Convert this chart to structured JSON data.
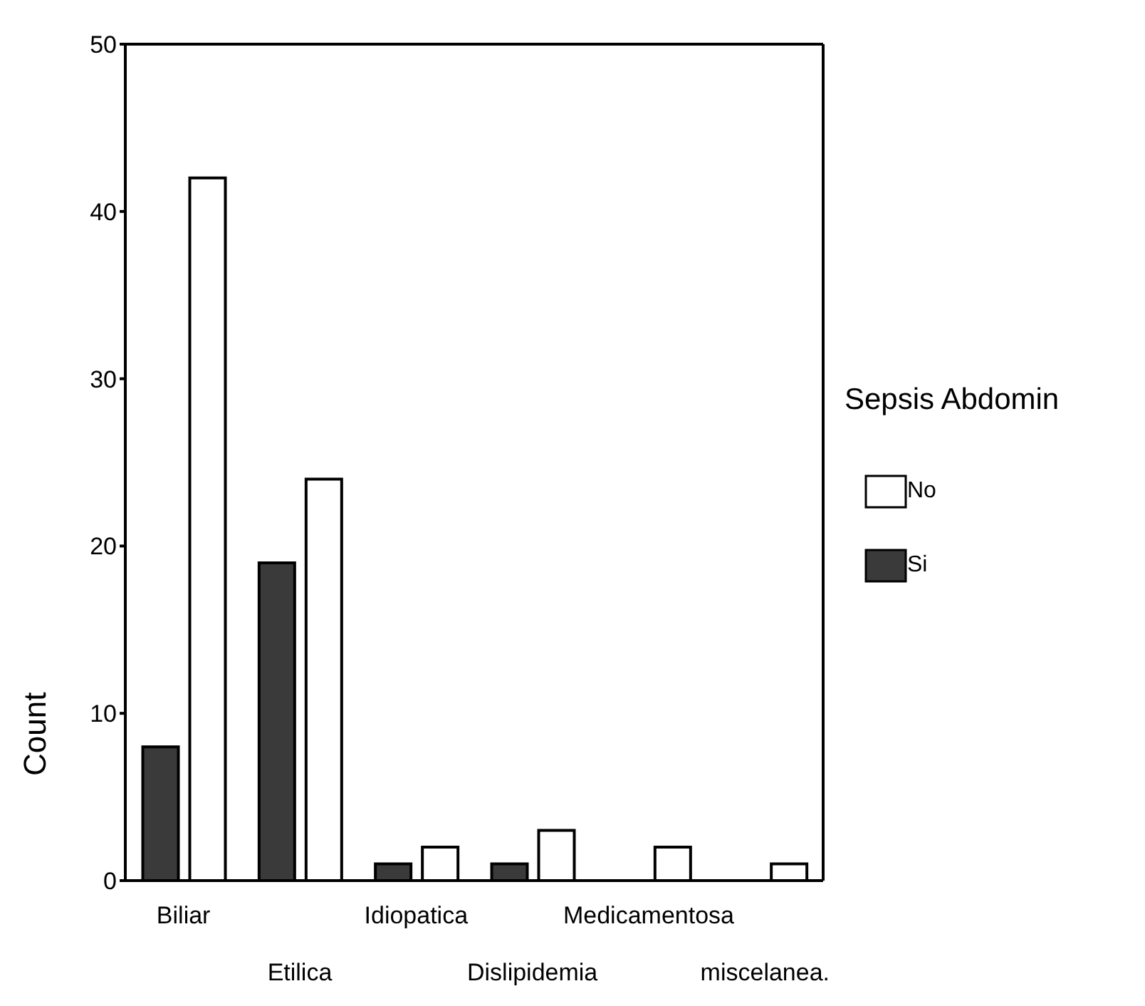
{
  "chart_data": {
    "type": "bar",
    "ylabel": "Count",
    "legend_title": "Sepsis Abdomin",
    "categories": [
      "Biliar",
      "Etilica",
      "Idiopatica",
      "Dislipidemia",
      "Medicamentosa",
      "miscelanea."
    ],
    "series": [
      {
        "name": "Si",
        "color": "#3a3a3a",
        "values": [
          8,
          19,
          1,
          1,
          0,
          0
        ]
      },
      {
        "name": "No",
        "color": "#ffffff",
        "values": [
          42,
          24,
          2,
          3,
          2,
          1
        ]
      }
    ],
    "ylim": [
      0,
      50
    ],
    "yticks": [
      0,
      10,
      20,
      30,
      40,
      50
    ],
    "grid": false,
    "legend": "right"
  }
}
